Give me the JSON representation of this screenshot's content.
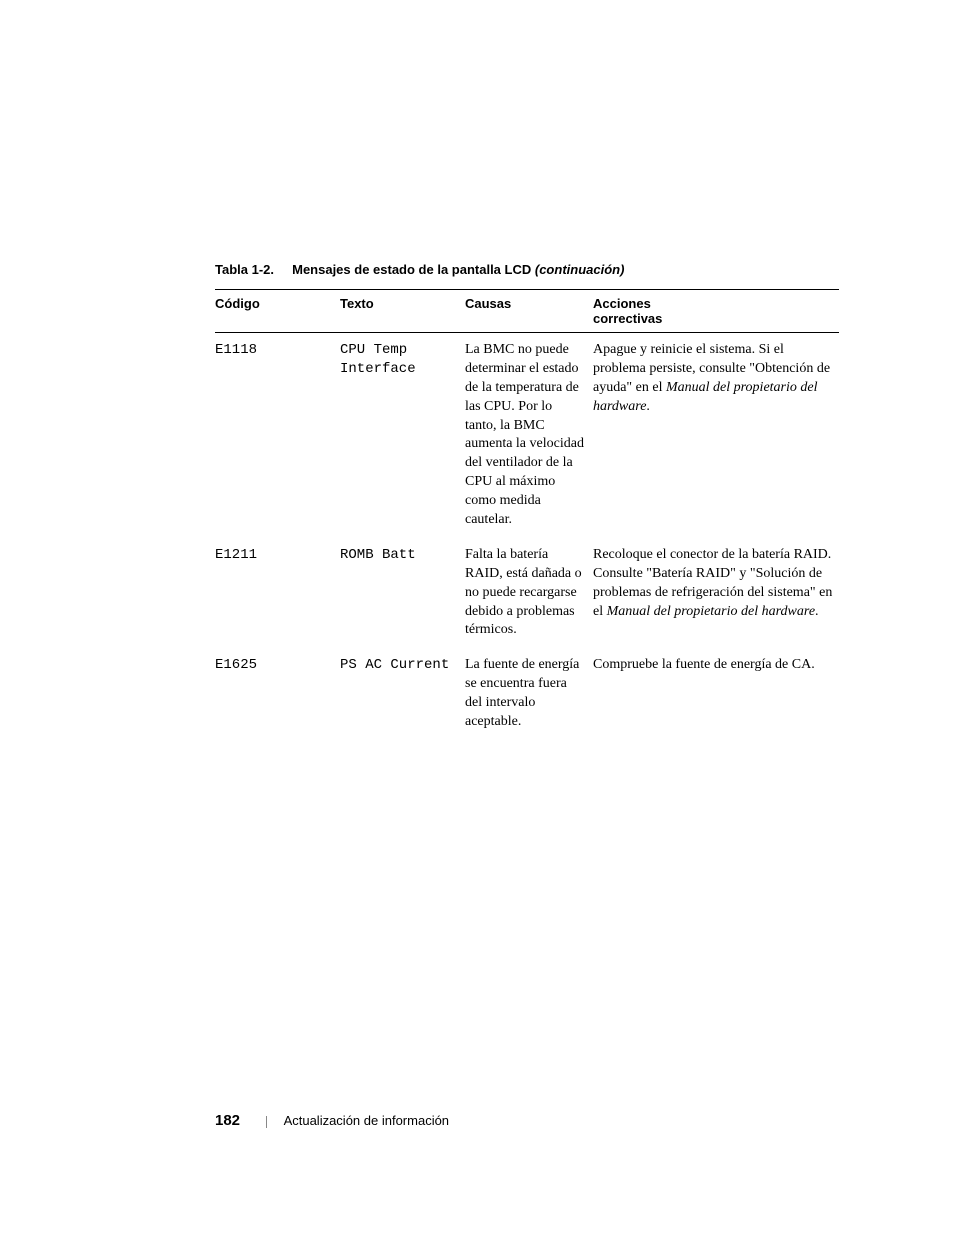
{
  "caption": {
    "table_num": "Tabla 1-2.",
    "title": "Mensajes de estado de la pantalla LCD",
    "continuation": "(continuación)"
  },
  "headers": {
    "code": "Código",
    "text": "Texto",
    "cause": "Causas",
    "action_l1": "Acciones",
    "action_l2": "correctivas"
  },
  "rows": [
    {
      "code": "E1118",
      "text_l1": "CPU Temp",
      "text_l2": "Interface",
      "cause": "La BMC no puede determinar el estado de la temperatura de las CPU. Por lo tanto, la BMC aumenta la velocidad del ventilador de la CPU al máximo como medida cautelar.",
      "action_plain1": "Apague y reinicie el sistema. Si el problema persiste, consulte \"Obtención de ayuda\" en el ",
      "action_italic1": "Manual del propietario del hardware",
      "action_tail1": "."
    },
    {
      "code": "E1211",
      "text_l1": "ROMB Batt",
      "text_l2": "",
      "cause": "Falta la batería RAID, está dañada o no puede recargarse debido a problemas térmicos.",
      "action_plain1": "Recoloque el conector de la batería RAID. Consulte \"Batería RAID\" y \"Solución de problemas de refrigeración del sistema\" en el ",
      "action_italic1": "Manual del propietario del hardware",
      "action_tail1": "."
    },
    {
      "code": "E1625",
      "text_l1": "PS AC Current",
      "text_l2": "",
      "cause": "La fuente de energía se encuentra fuera del intervalo aceptable.",
      "action_plain1": "Compruebe la fuente de energía de CA.",
      "action_italic1": "",
      "action_tail1": ""
    }
  ],
  "footer": {
    "page_num": "182",
    "section": "Actualización de información"
  }
}
